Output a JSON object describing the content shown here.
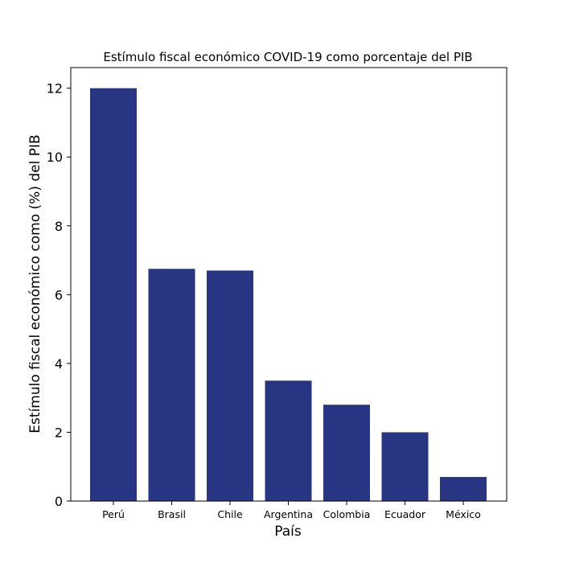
{
  "chart_data": {
    "type": "bar",
    "title": "Estímulo fiscal económico COVID-19 como porcentaje del PIB",
    "xlabel": "País",
    "ylabel": "Estímulo fiscal económico como (%) del PIB",
    "categories": [
      "Perú",
      "Brasil",
      "Chile",
      "Argentina",
      "Colombia",
      "Ecuador",
      "México"
    ],
    "values": [
      12,
      6.75,
      6.7,
      3.5,
      2.8,
      2.0,
      0.7
    ],
    "ylim": [
      0,
      12.6
    ],
    "yticks": [
      0,
      2,
      4,
      6,
      8,
      10,
      12
    ],
    "bar_color": "#283583",
    "grid": false,
    "legend": "none"
  }
}
